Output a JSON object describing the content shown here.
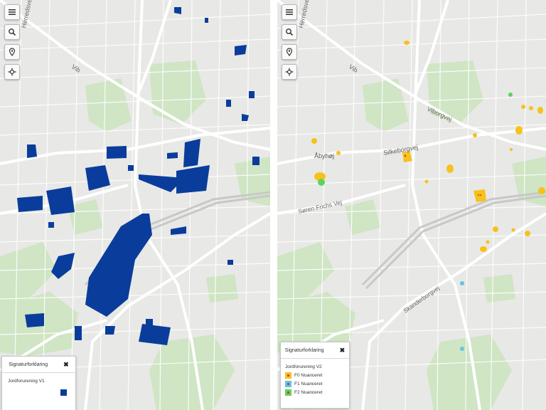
{
  "controls": {
    "menu_icon": "hamburger-icon",
    "search_icon": "search-icon",
    "location_icon": "map-pin-icon",
    "locate_icon": "crosshair-icon"
  },
  "map_labels": {
    "herredsvej": "Herredsvej",
    "vib": "Vib",
    "viborgvej": "Viborgvej",
    "silkeborgvej": "Silkeborgvej",
    "abyhoj": "Åbyhøj",
    "soren_frichs": "Søren Frichs Vej",
    "skanderborgvej": "Skanderborgvej"
  },
  "left_legend": {
    "title": "Signaturforklaring",
    "close": "✖",
    "group": "Jordforurening V1"
  },
  "right_legend": {
    "title": "Signaturforklaring",
    "close": "✖",
    "group": "Jordforurening V2",
    "items": [
      "F0 Nuanceret",
      "F1 Nuanceret",
      "F2 Nuanceret"
    ]
  },
  "colors": {
    "v1_fill": "#0a3d9b",
    "f0": "#f6c21b",
    "f1": "#5fc6e2",
    "f2": "#5dd35a",
    "park": "#cfe5c4",
    "road": "#ffffff",
    "base": "#e8e8e6"
  }
}
